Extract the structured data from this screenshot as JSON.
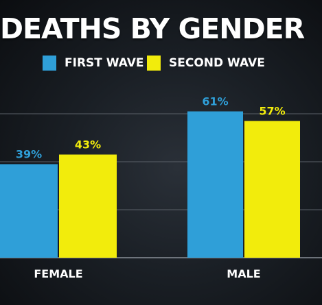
{
  "chart_data": {
    "type": "bar",
    "title": "DEATHS BY GENDER",
    "categories": [
      "FEMALE",
      "MALE"
    ],
    "series": [
      {
        "name": "FIRST WAVE",
        "color": "#2f9fd8",
        "values": [
          39,
          61
        ],
        "labels": [
          "39%",
          "61%"
        ]
      },
      {
        "name": "SECOND WAVE",
        "color": "#f2ec0c",
        "values": [
          43,
          57
        ],
        "labels": [
          "43%",
          "57%"
        ]
      }
    ],
    "ylim": [
      0,
      75
    ],
    "grid": true,
    "legend": "top-center"
  }
}
